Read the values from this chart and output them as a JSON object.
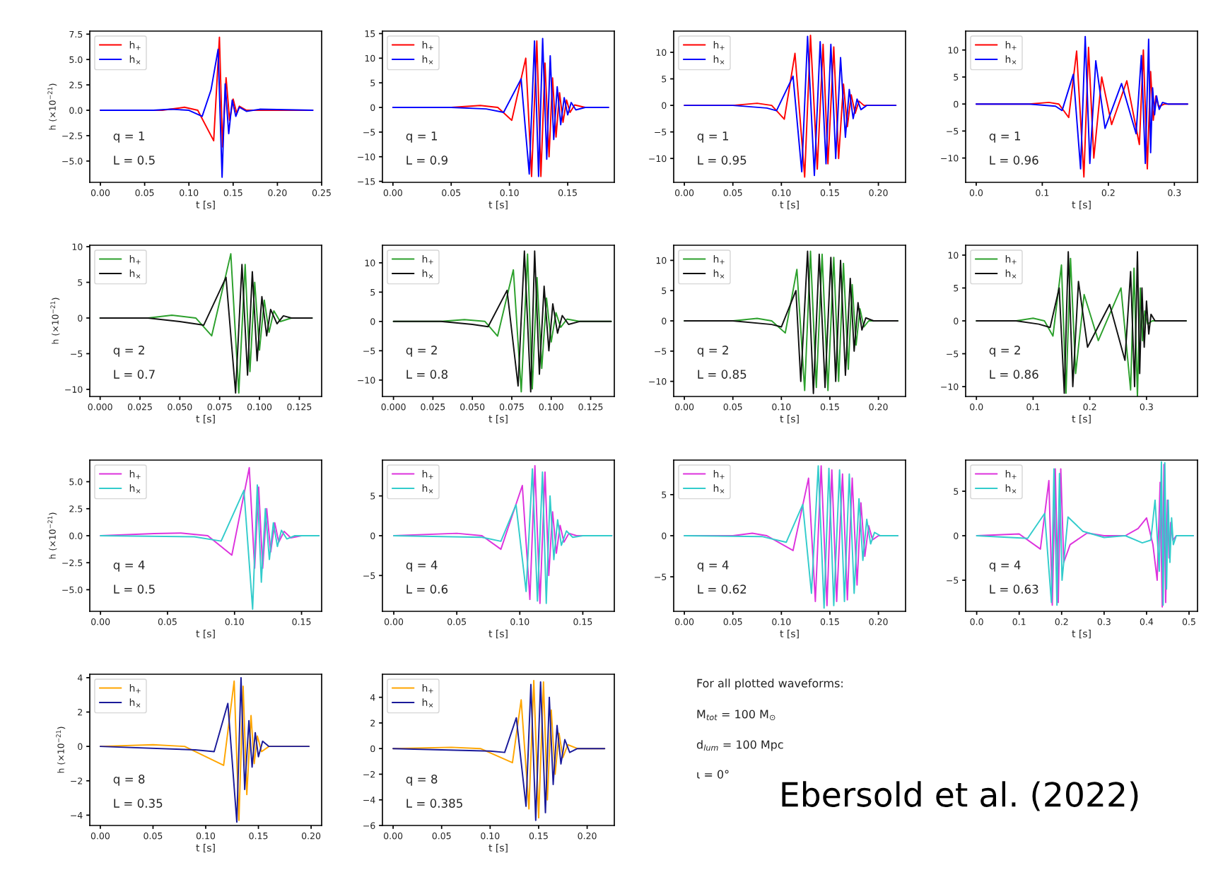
{
  "chart_data": [
    {
      "type": "line",
      "xlabel": "t [s]",
      "ylabel": "h (×10$^{−21}$)",
      "legend": "top left",
      "annotations": [
        "q = 1",
        "L = 0.5"
      ],
      "xlim": [
        -0.012,
        0.25
      ],
      "ylim": [
        -7.1,
        7.8
      ],
      "xticks": [
        {
          "value": 0,
          "label": "0.00"
        },
        {
          "value": 0.05,
          "label": "0.05"
        },
        {
          "value": 0.1,
          "label": "0.10"
        },
        {
          "value": 0.15,
          "label": "0.15"
        },
        {
          "value": 0.2,
          "label": "0.20"
        },
        {
          "value": 0.25,
          "label": "0.25"
        }
      ],
      "yticks": [
        {
          "value": -5,
          "label": "−5.0"
        },
        {
          "value": -2.5,
          "label": "−2.5"
        },
        {
          "value": 0,
          "label": "0.0"
        },
        {
          "value": 2.5,
          "label": "2.5"
        },
        {
          "value": 5,
          "label": "5.0"
        },
        {
          "value": 7.5,
          "label": "7.5"
        }
      ],
      "series": [
        {
          "name": "h$_{+}$",
          "color": "#ff0000",
          "x": [
            0,
            0.07,
            0.095,
            0.11,
            0.128,
            0.1345,
            0.138,
            0.142,
            0.146,
            0.15,
            0.154,
            0.157,
            0.165,
            0.24
          ],
          "values": [
            0,
            0,
            0.3,
            0,
            -3,
            7.2,
            -3.6,
            3.2,
            -1,
            1.1,
            -0.3,
            0.4,
            0,
            0
          ]
        },
        {
          "name": "h$_{×}$",
          "color": "#0000ff",
          "x": [
            0,
            0.06,
            0.08,
            0.1,
            0.115,
            0.125,
            0.133,
            0.1375,
            0.141,
            0.145,
            0.149,
            0.153,
            0.157,
            0.165,
            0.18,
            0.24
          ],
          "values": [
            0,
            0,
            0.1,
            0,
            -0.6,
            2,
            6,
            -6.6,
            2.6,
            -2.3,
            1,
            -0.6,
            0.3,
            -0.1,
            0.1,
            0
          ]
        }
      ]
    },
    {
      "type": "line",
      "xlabel": "t [s]",
      "legend": "top left",
      "annotations": [
        "q = 1",
        "L = 0.9"
      ],
      "xlim": [
        -0.009,
        0.19
      ],
      "ylim": [
        -15.2,
        15.5
      ],
      "xticks": [
        {
          "value": 0,
          "label": "0.00"
        },
        {
          "value": 0.05,
          "label": "0.05"
        },
        {
          "value": 0.1,
          "label": "0.10"
        },
        {
          "value": 0.15,
          "label": "0.15"
        }
      ],
      "yticks": [
        {
          "value": -15,
          "label": "−15"
        },
        {
          "value": -10,
          "label": "−10"
        },
        {
          "value": -5,
          "label": "−5"
        },
        0,
        5,
        10,
        15
      ],
      "series": [
        {
          "name": "h$_{+}$",
          "color": "#ff0000",
          "x": [
            0,
            0.05,
            0.075,
            0.09,
            0.102,
            0.114,
            0.119,
            0.1235,
            0.127,
            0.1305,
            0.134,
            0.137,
            0.14,
            0.143,
            0.146,
            0.149,
            0.152,
            0.156,
            0.165,
            0.185
          ],
          "values": [
            0,
            0,
            0.4,
            0,
            -2.6,
            10,
            -14,
            13.5,
            -14,
            9,
            -10,
            6,
            -6,
            3,
            -3,
            1.5,
            -1,
            0.5,
            0,
            0
          ]
        },
        {
          "name": "h$_{×}$",
          "color": "#0000ff",
          "x": [
            0,
            0.05,
            0.08,
            0.095,
            0.11,
            0.117,
            0.1215,
            0.125,
            0.1285,
            0.132,
            0.135,
            0.138,
            0.141,
            0.144,
            0.147,
            0.15,
            0.153,
            0.157,
            0.165,
            0.185
          ],
          "values": [
            0,
            0,
            -0.3,
            -1,
            5.8,
            -13.5,
            13.5,
            -14,
            14,
            -10.5,
            10.5,
            -6.5,
            4.2,
            -3.5,
            2,
            -1.5,
            1,
            -0.5,
            0,
            0
          ]
        }
      ]
    },
    {
      "type": "line",
      "xlabel": "t [s]",
      "legend": "top left",
      "annotations": [
        "q = 1",
        "L = 0.95"
      ],
      "xlim": [
        -0.011,
        0.228
      ],
      "ylim": [
        -14.5,
        14
      ],
      "xticks": [
        {
          "value": 0,
          "label": "0.00"
        },
        {
          "value": 0.05,
          "label": "0.05"
        },
        {
          "value": 0.1,
          "label": "0.10"
        },
        {
          "value": 0.15,
          "label": "0.15"
        },
        {
          "value": 0.2,
          "label": "0.20"
        }
      ],
      "yticks": [
        {
          "value": -10,
          "label": "−10"
        },
        {
          "value": -5,
          "label": "−5"
        },
        0,
        5,
        10
      ],
      "series": [
        {
          "name": "h$_{+}$",
          "color": "#ff0000",
          "x": [
            0,
            0.05,
            0.075,
            0.09,
            0.103,
            0.114,
            0.124,
            0.13,
            0.137,
            0.143,
            0.148,
            0.154,
            0.159,
            0.164,
            0.168,
            0.172,
            0.176,
            0.18,
            0.185,
            0.218
          ],
          "values": [
            0,
            0,
            0.4,
            0,
            -2.6,
            9.8,
            -13.5,
            13.2,
            -12,
            11.5,
            -11,
            11,
            -10,
            4,
            -4,
            2,
            -1.5,
            0.8,
            0,
            0
          ]
        },
        {
          "name": "h$_{×}$",
          "color": "#0000ff",
          "x": [
            0,
            0.05,
            0.085,
            0.095,
            0.112,
            0.121,
            0.127,
            0.134,
            0.14,
            0.146,
            0.151,
            0.156,
            0.161,
            0.166,
            0.17,
            0.174,
            0.178,
            0.182,
            0.188,
            0.218
          ],
          "values": [
            0,
            0,
            -0.5,
            -1,
            5.5,
            -12.5,
            13,
            -13.2,
            12,
            -11,
            11.5,
            -10,
            9,
            -6,
            3,
            -2.5,
            1.2,
            -0.8,
            0,
            0
          ]
        }
      ]
    },
    {
      "type": "line",
      "xlabel": "t [s]",
      "legend": "top left",
      "annotations": [
        "q = 1",
        "L = 0.96"
      ],
      "xlim": [
        -0.016,
        0.335
      ],
      "ylim": [
        -14.5,
        13.5
      ],
      "xticks": [
        {
          "value": 0,
          "label": "0.0"
        },
        {
          "value": 0.1,
          "label": "0.1"
        },
        {
          "value": 0.2,
          "label": "0.2"
        },
        {
          "value": 0.3,
          "label": "0.3"
        }
      ],
      "yticks": [
        {
          "value": -10,
          "label": "−10"
        },
        {
          "value": -5,
          "label": "−5"
        },
        0,
        5,
        10
      ],
      "series": [
        {
          "name": "h$_{+}$",
          "color": "#ff0000",
          "x": [
            0,
            0.08,
            0.11,
            0.125,
            0.14,
            0.152,
            0.163,
            0.17,
            0.178,
            0.19,
            0.205,
            0.228,
            0.247,
            0.253,
            0.259,
            0.264,
            0.268,
            0.272,
            0.276,
            0.285,
            0.32
          ],
          "values": [
            0,
            0,
            0.3,
            0,
            -2.5,
            9.8,
            -13.5,
            10.5,
            -10,
            5,
            -3.8,
            4.3,
            -7.5,
            10,
            -12,
            6,
            -3,
            1.5,
            -0.5,
            0,
            0
          ]
        },
        {
          "name": "h$_{×}$",
          "color": "#0000ff",
          "x": [
            0,
            0.08,
            0.12,
            0.13,
            0.147,
            0.158,
            0.165,
            0.172,
            0.181,
            0.195,
            0.22,
            0.242,
            0.25,
            0.256,
            0.261,
            0.264,
            0.267,
            0.27,
            0.273,
            0.277,
            0.282,
            0.29,
            0.32
          ],
          "values": [
            0,
            0,
            -0.4,
            -1.2,
            5.5,
            -12,
            12.5,
            -11,
            8,
            -4.5,
            3.8,
            -5.5,
            9,
            -11,
            12,
            -9,
            3,
            -2,
            1.5,
            -1,
            0.3,
            0,
            0
          ]
        }
      ]
    },
    {
      "type": "line",
      "xlabel": "t [s]",
      "ylabel": "h (×10$^{−21}$)",
      "legend": "top left",
      "annotations": [
        "q = 2",
        "L = 0.7"
      ],
      "xlim": [
        -0.0065,
        0.139
      ],
      "ylim": [
        -11,
        10.2
      ],
      "xticks": [
        {
          "value": 0,
          "label": "0.000"
        },
        {
          "value": 0.025,
          "label": "0.025"
        },
        {
          "value": 0.05,
          "label": "0.050"
        },
        {
          "value": 0.075,
          "label": "0.075"
        },
        {
          "value": 0.1,
          "label": "0.100"
        },
        {
          "value": 0.125,
          "label": "0.125"
        }
      ],
      "yticks": [
        {
          "value": -10,
          "label": "−10"
        },
        {
          "value": -5,
          "label": "−5"
        },
        0,
        5,
        10
      ],
      "series": [
        {
          "name": "h$_{+}$",
          "color": "#2ca02c",
          "x": [
            0,
            0.03,
            0.045,
            0.06,
            0.07,
            0.082,
            0.087,
            0.091,
            0.094,
            0.097,
            0.1,
            0.103,
            0.106,
            0.109,
            0.113,
            0.12,
            0.133
          ],
          "values": [
            0,
            0,
            0.4,
            0,
            -2.5,
            9,
            -10.5,
            7.5,
            -7.5,
            5,
            -4.5,
            2.5,
            -2,
            1,
            -0.5,
            0,
            0
          ]
        },
        {
          "name": "h$_{×}$",
          "color": "#111111",
          "x": [
            0,
            0.03,
            0.05,
            0.065,
            0.079,
            0.085,
            0.089,
            0.0925,
            0.0955,
            0.0985,
            0.1015,
            0.1045,
            0.107,
            0.111,
            0.115,
            0.12,
            0.133
          ],
          "values": [
            0,
            0,
            -0.5,
            -1,
            5.7,
            -10.5,
            7.5,
            -8,
            6.5,
            -6,
            3,
            -2.5,
            1.2,
            -0.8,
            0.3,
            0,
            0
          ]
        }
      ]
    },
    {
      "type": "line",
      "xlabel": "t [s]",
      "legend": "top left",
      "annotations": [
        "q = 2",
        "L = 0.8"
      ],
      "xlim": [
        -0.007,
        0.14
      ],
      "ylim": [
        -12.8,
        13
      ],
      "xticks": [
        {
          "value": 0,
          "label": "0.000"
        },
        {
          "value": 0.025,
          "label": "0.025"
        },
        {
          "value": 0.05,
          "label": "0.050"
        },
        {
          "value": 0.075,
          "label": "0.075"
        },
        {
          "value": 0.1,
          "label": "0.100"
        },
        {
          "value": 0.125,
          "label": "0.125"
        }
      ],
      "yticks": [
        {
          "value": -10,
          "label": "−10"
        },
        {
          "value": -5,
          "label": "−5"
        },
        0,
        5,
        10
      ],
      "series": [
        {
          "name": "h$_{+}$",
          "color": "#2ca02c",
          "x": [
            0,
            0.03,
            0.045,
            0.058,
            0.066,
            0.076,
            0.081,
            0.085,
            0.088,
            0.091,
            0.094,
            0.097,
            0.1,
            0.103,
            0.106,
            0.11,
            0.118,
            0.138
          ],
          "values": [
            0,
            0,
            0.3,
            0,
            -2.5,
            8.8,
            -12,
            11.5,
            -11.5,
            7.5,
            -8,
            4,
            -3.5,
            1.5,
            -1,
            0.4,
            0,
            0
          ]
        },
        {
          "name": "h$_{×}$",
          "color": "#111111",
          "x": [
            0,
            0.03,
            0.05,
            0.06,
            0.072,
            0.079,
            0.083,
            0.087,
            0.0895,
            0.0925,
            0.0955,
            0.0985,
            0.101,
            0.104,
            0.107,
            0.111,
            0.118,
            0.138
          ],
          "values": [
            0,
            0,
            -0.5,
            -0.9,
            5.3,
            -11,
            12,
            -12,
            12,
            -9,
            6,
            -5,
            3,
            -2,
            1,
            -0.5,
            0,
            0
          ]
        }
      ]
    },
    {
      "type": "line",
      "xlabel": "t [s]",
      "legend": "top left",
      "annotations": [
        "q = 2",
        "L = 0.85"
      ],
      "xlim": [
        -0.011,
        0.228
      ],
      "ylim": [
        -12.5,
        12.5
      ],
      "xticks": [
        {
          "value": 0,
          "label": "0.00"
        },
        {
          "value": 0.05,
          "label": "0.05"
        },
        {
          "value": 0.1,
          "label": "0.10"
        },
        {
          "value": 0.15,
          "label": "0.15"
        },
        {
          "value": 0.2,
          "label": "0.20"
        }
      ],
      "yticks": [
        {
          "value": -10,
          "label": "−10"
        },
        {
          "value": -5,
          "label": "−5"
        },
        0,
        5,
        10
      ],
      "series": [
        {
          "name": "h$_{+}$",
          "color": "#2ca02c",
          "x": [
            0,
            0.05,
            0.075,
            0.09,
            0.104,
            0.116,
            0.124,
            0.13,
            0.136,
            0.142,
            0.148,
            0.154,
            0.159,
            0.164,
            0.169,
            0.173,
            0.177,
            0.181,
            0.185,
            0.19,
            0.22
          ],
          "values": [
            0,
            0,
            0.4,
            0,
            -2,
            8.5,
            -11.5,
            11.5,
            -11,
            11,
            -11.5,
            10.5,
            -10,
            9.5,
            -8,
            6,
            -4,
            2,
            -1,
            0,
            0
          ]
        },
        {
          "name": "h$_{×}$",
          "color": "#111111",
          "x": [
            0,
            0.05,
            0.09,
            0.1,
            0.115,
            0.12,
            0.127,
            0.133,
            0.139,
            0.145,
            0.151,
            0.156,
            0.161,
            0.166,
            0.171,
            0.175,
            0.179,
            0.183,
            0.187,
            0.195,
            0.22
          ],
          "values": [
            0,
            0,
            -0.6,
            -1,
            5,
            -10,
            11.5,
            -12,
            11,
            -11,
            10.5,
            -10,
            10,
            -9,
            7,
            -5,
            3,
            -1.5,
            0.5,
            0,
            0
          ]
        }
      ]
    },
    {
      "type": "line",
      "xlabel": "t [s]",
      "legend": "top left",
      "annotations": [
        "q = 2",
        "L = 0.86"
      ],
      "xlim": [
        -0.019,
        0.39
      ],
      "ylim": [
        -11.5,
        11.5
      ],
      "xticks": [
        {
          "value": 0,
          "label": "0.0"
        },
        {
          "value": 0.1,
          "label": "0.1"
        },
        {
          "value": 0.2,
          "label": "0.2"
        },
        {
          "value": 0.3,
          "label": "0.3"
        }
      ],
      "yticks": [
        {
          "value": -10,
          "label": "−10"
        },
        {
          "value": -5,
          "label": "−5"
        },
        0,
        5,
        10
      ],
      "series": [
        {
          "name": "h$_{+}$",
          "color": "#2ca02c",
          "x": [
            0,
            0.07,
            0.1,
            0.12,
            0.135,
            0.15,
            0.158,
            0.166,
            0.175,
            0.19,
            0.215,
            0.255,
            0.272,
            0.278,
            0.284,
            0.289,
            0.293,
            0.297,
            0.302,
            0.31,
            0.37
          ],
          "values": [
            0,
            0,
            0.4,
            0,
            -2.3,
            8.5,
            -11,
            9.5,
            -8,
            4,
            -3,
            5,
            -10.5,
            8,
            -11.5,
            5,
            -3,
            1.5,
            -0.5,
            0,
            0
          ]
        },
        {
          "name": "h$_{×}$",
          "color": "#111111",
          "x": [
            0,
            0.07,
            0.11,
            0.13,
            0.146,
            0.155,
            0.162,
            0.17,
            0.18,
            0.196,
            0.235,
            0.262,
            0.272,
            0.279,
            0.284,
            0.288,
            0.292,
            0.296,
            0.3,
            0.304,
            0.308,
            0.315,
            0.37
          ],
          "values": [
            0,
            0,
            -0.5,
            -1,
            5,
            -11,
            10.5,
            -10,
            6,
            -4,
            2.5,
            -6,
            7.5,
            -10,
            10.5,
            -8,
            5,
            -4,
            3,
            -2,
            1,
            0,
            0
          ]
        }
      ]
    },
    {
      "type": "line",
      "xlabel": "t [s]",
      "ylabel": "h (×10$^{−21}$)",
      "legend": "top left",
      "annotations": [
        "q = 4",
        "L = 0.5"
      ],
      "xlim": [
        -0.008,
        0.165
      ],
      "ylim": [
        -7,
        7
      ],
      "xticks": [
        {
          "value": 0,
          "label": "0.00"
        },
        {
          "value": 0.05,
          "label": "0.05"
        },
        {
          "value": 0.1,
          "label": "0.10"
        },
        {
          "value": 0.15,
          "label": "0.15"
        }
      ],
      "yticks": [
        {
          "value": -5,
          "label": "−5.0"
        },
        {
          "value": -2.5,
          "label": "−2.5"
        },
        {
          "value": 0,
          "label": "0.0"
        },
        {
          "value": 2.5,
          "label": "2.5"
        },
        {
          "value": 5,
          "label": "5.0"
        }
      ],
      "series": [
        {
          "name": "h$_{+}$",
          "color": "#dd33dd",
          "x": [
            0,
            0.04,
            0.06,
            0.08,
            0.098,
            0.111,
            0.115,
            0.118,
            0.121,
            0.124,
            0.127,
            0.13,
            0.133,
            0.137,
            0.142,
            0.15,
            0.163
          ],
          "values": [
            0,
            0.2,
            0.25,
            0,
            -1.8,
            6.3,
            -3,
            4.5,
            -3,
            2.5,
            -1.5,
            1.2,
            -0.6,
            0.4,
            -0.2,
            0,
            0
          ]
        },
        {
          "name": "h$_{×}$",
          "color": "#33cccc",
          "x": [
            0,
            0.07,
            0.09,
            0.107,
            0.1135,
            0.117,
            0.12,
            0.123,
            0.126,
            0.129,
            0.132,
            0.135,
            0.139,
            0.145,
            0.163
          ],
          "values": [
            0,
            -0.1,
            -0.5,
            4.2,
            -6.8,
            4.7,
            -4.3,
            2.5,
            -2.2,
            1.2,
            -1,
            0.5,
            -0.3,
            0,
            0
          ]
        }
      ]
    },
    {
      "type": "line",
      "xlabel": "t [s]",
      "legend": "top left",
      "annotations": [
        "q = 4",
        "L = 0.6"
      ],
      "xlim": [
        -0.009,
        0.175
      ],
      "ylim": [
        -9.5,
        9.5
      ],
      "xticks": [
        {
          "value": 0,
          "label": "0.00"
        },
        {
          "value": 0.05,
          "label": "0.05"
        },
        {
          "value": 0.1,
          "label": "0.10"
        },
        {
          "value": 0.15,
          "label": "0.15"
        }
      ],
      "yticks": [
        {
          "value": -5,
          "label": "−5"
        },
        0,
        5
      ],
      "series": [
        {
          "name": "h$_{+}$",
          "color": "#dd33dd",
          "x": [
            0,
            0.05,
            0.07,
            0.085,
            0.102,
            0.108,
            0.112,
            0.116,
            0.12,
            0.123,
            0.126,
            0.129,
            0.132,
            0.135,
            0.139,
            0.145,
            0.173
          ],
          "values": [
            0,
            0.3,
            0,
            -1.7,
            6.3,
            -8,
            8.8,
            -8.5,
            8,
            -5,
            3,
            -2.2,
            1.3,
            -0.8,
            0.3,
            0,
            0
          ]
        },
        {
          "name": "h$_{×}$",
          "color": "#33cccc",
          "x": [
            0,
            0.07,
            0.085,
            0.097,
            0.105,
            0.11,
            0.114,
            0.118,
            0.121,
            0.124,
            0.127,
            0.13,
            0.133,
            0.137,
            0.142,
            0.15,
            0.173
          ],
          "values": [
            0,
            -0.2,
            -0.7,
            3.9,
            -7,
            8.4,
            -8.2,
            8,
            -8.5,
            5,
            -3,
            2,
            -1.2,
            0.6,
            -0.2,
            0,
            0
          ]
        }
      ]
    },
    {
      "type": "line",
      "xlabel": "t [s]",
      "legend": "top left",
      "annotations": [
        "q = 4",
        "L = 0.62"
      ],
      "xlim": [
        -0.011,
        0.228
      ],
      "ylim": [
        -9.2,
        9.2
      ],
      "xticks": [
        {
          "value": 0,
          "label": "0.00"
        },
        {
          "value": 0.05,
          "label": "0.05"
        },
        {
          "value": 0.1,
          "label": "0.10"
        },
        {
          "value": 0.15,
          "label": "0.15"
        },
        {
          "value": 0.2,
          "label": "0.20"
        }
      ],
      "yticks": [
        {
          "value": -5,
          "label": "−5"
        },
        0,
        5
      ],
      "series": [
        {
          "name": "h$_{+}$",
          "color": "#dd33dd",
          "x": [
            0,
            0.05,
            0.07,
            0.085,
            0.112,
            0.128,
            0.135,
            0.141,
            0.147,
            0.152,
            0.157,
            0.163,
            0.168,
            0.173,
            0.178,
            0.182,
            0.186,
            0.19,
            0.194,
            0.2,
            0.22
          ],
          "values": [
            0,
            0,
            0.3,
            0,
            -1.8,
            7,
            -8,
            8.5,
            -8.5,
            8,
            -8,
            7.5,
            -7.8,
            7,
            -6,
            4,
            -2.5,
            1.2,
            -0.5,
            0,
            0
          ]
        },
        {
          "name": "h$_{×}$",
          "color": "#33cccc",
          "x": [
            0,
            0.08,
            0.105,
            0.122,
            0.131,
            0.138,
            0.144,
            0.149,
            0.154,
            0.16,
            0.165,
            0.17,
            0.175,
            0.18,
            0.184,
            0.188,
            0.192,
            0.196,
            0.202,
            0.22
          ],
          "values": [
            0,
            -0.1,
            -0.8,
            3.8,
            -7,
            8.5,
            -8.8,
            8.2,
            -8.5,
            8,
            -8,
            7.5,
            -7,
            4.5,
            -3,
            2,
            -1,
            0.4,
            0,
            0
          ]
        }
      ]
    },
    {
      "type": "line",
      "xlabel": "t [s]",
      "legend": "top left",
      "annotations": [
        "q = 4",
        "L = 0.63"
      ],
      "xlim": [
        -0.026,
        0.52
      ],
      "ylim": [
        -8.5,
        8.5
      ],
      "xticks": [
        {
          "value": 0,
          "label": "0.0"
        },
        {
          "value": 0.1,
          "label": "0.1"
        },
        {
          "value": 0.2,
          "label": "0.2"
        },
        {
          "value": 0.3,
          "label": "0.3"
        },
        {
          "value": 0.4,
          "label": "0.4"
        },
        {
          "value": 0.5,
          "label": "0.5"
        }
      ],
      "yticks": [
        {
          "value": -5,
          "label": "−5"
        },
        0,
        5
      ],
      "series": [
        {
          "name": "h$_{+}$",
          "color": "#dd33dd",
          "x": [
            0,
            0.1,
            0.15,
            0.17,
            0.178,
            0.185,
            0.192,
            0.198,
            0.205,
            0.22,
            0.26,
            0.3,
            0.35,
            0.38,
            0.4,
            0.415,
            0.425,
            0.432,
            0.437,
            0.441,
            0.445,
            0.449,
            0.453,
            0.457,
            0.462,
            0.47,
            0.51
          ],
          "values": [
            0,
            0.2,
            -1.5,
            6.2,
            -7.8,
            7.5,
            -7.5,
            7.5,
            -3,
            -1,
            0.3,
            0,
            0,
            0.8,
            2,
            -1,
            -5,
            6,
            -8,
            8,
            -7.5,
            4,
            -2.5,
            1.5,
            -0.5,
            0,
            0
          ]
        },
        {
          "name": "h$_{×}$",
          "color": "#33cccc",
          "x": [
            0,
            0.12,
            0.16,
            0.176,
            0.182,
            0.189,
            0.195,
            0.201,
            0.215,
            0.25,
            0.3,
            0.35,
            0.39,
            0.41,
            0.42,
            0.43,
            0.435,
            0.439,
            0.443,
            0.447,
            0.451,
            0.455,
            0.459,
            0.463,
            0.47,
            0.51
          ],
          "values": [
            0,
            -0.3,
            2.5,
            -7.5,
            7.5,
            -7.8,
            7,
            -5,
            2.1,
            0.5,
            -0.2,
            0,
            -0.8,
            -0.5,
            4,
            -4,
            8.3,
            -7.8,
            8.2,
            -6,
            4,
            -3,
            2,
            -1,
            0,
            0
          ]
        }
      ]
    },
    {
      "type": "line",
      "xlabel": "t [s]",
      "ylabel": "h (×10$^{−21}$)",
      "legend": "top left",
      "annotations": [
        "q = 8",
        "L = 0.35"
      ],
      "xlim": [
        -0.01,
        0.21
      ],
      "ylim": [
        -4.6,
        4.2
      ],
      "xticks": [
        {
          "value": 0,
          "label": "0.00"
        },
        {
          "value": 0.05,
          "label": "0.05"
        },
        {
          "value": 0.1,
          "label": "0.10"
        },
        {
          "value": 0.15,
          "label": "0.15"
        },
        {
          "value": 0.2,
          "label": "0.20"
        }
      ],
      "yticks": [
        {
          "value": -4,
          "label": "−4"
        },
        {
          "value": -2,
          "label": "−2"
        },
        0,
        2,
        4
      ],
      "series": [
        {
          "name": "h$_{+}$",
          "color": "#ffa500",
          "x": [
            0,
            0.05,
            0.08,
            0.117,
            0.127,
            0.1315,
            0.1355,
            0.139,
            0.143,
            0.146,
            0.149,
            0.153,
            0.16,
            0.198
          ],
          "values": [
            0,
            0.1,
            0,
            -1.1,
            3.8,
            -4.3,
            3.5,
            -2.8,
            1.8,
            -1,
            0.6,
            -0.3,
            0,
            0
          ]
        },
        {
          "name": "h$_{×}$",
          "color": "#1a1a9a",
          "x": [
            0,
            0.09,
            0.108,
            0.121,
            0.1295,
            0.1335,
            0.137,
            0.141,
            0.144,
            0.147,
            0.15,
            0.154,
            0.16,
            0.198
          ],
          "values": [
            0,
            -0.2,
            -0.3,
            2.5,
            -4.4,
            4,
            -2.5,
            1.5,
            -1.2,
            0.8,
            -0.6,
            0.3,
            0,
            0
          ]
        }
      ]
    },
    {
      "type": "line",
      "xlabel": "t [s]",
      "legend": "top left",
      "annotations": [
        "q = 8",
        "L = 0.385"
      ],
      "xlim": [
        -0.011,
        0.228
      ],
      "ylim": [
        -6,
        5.8
      ],
      "xticks": [
        {
          "value": 0,
          "label": "0.00"
        },
        {
          "value": 0.05,
          "label": "0.05"
        },
        {
          "value": 0.1,
          "label": "0.10"
        },
        {
          "value": 0.15,
          "label": "0.15"
        },
        {
          "value": 0.2,
          "label": "0.20"
        }
      ],
      "yticks": [
        {
          "value": -6,
          "label": "−6"
        },
        {
          "value": -4,
          "label": "−4"
        },
        {
          "value": -2,
          "label": "−2"
        },
        0,
        2,
        4
      ],
      "series": [
        {
          "name": "h$_{+}$",
          "color": "#ffa500",
          "x": [
            0,
            0.06,
            0.09,
            0.123,
            0.132,
            0.14,
            0.145,
            0.15,
            0.155,
            0.159,
            0.163,
            0.167,
            0.171,
            0.175,
            0.18,
            0.19,
            0.218
          ],
          "values": [
            0,
            0.1,
            0,
            -1.1,
            3.8,
            -4.7,
            5.3,
            -5.4,
            5.2,
            -4,
            3,
            -2,
            1.2,
            -0.7,
            0.3,
            0,
            0
          ]
        },
        {
          "name": "h$_{×}$",
          "color": "#1a1a9a",
          "x": [
            0,
            0.1,
            0.115,
            0.127,
            0.137,
            0.142,
            0.147,
            0.152,
            0.157,
            0.161,
            0.165,
            0.169,
            0.173,
            0.177,
            0.182,
            0.19,
            0.218
          ],
          "values": [
            0,
            -0.2,
            -0.3,
            2.4,
            -4.5,
            5,
            -5.6,
            5.2,
            -5,
            4,
            -2.8,
            1.8,
            -1.2,
            0.7,
            -0.3,
            0,
            0
          ]
        }
      ]
    },
    {
      "type": "other",
      "annotations": [
        "For all plotted waveforms:",
        "M$_{tot}$ = 100 M$_{⊙}$",
        "d$_{lum}$ = 100 Mpc",
        "ι = 0°",
        "Ebersold et al. (2022)"
      ]
    }
  ]
}
